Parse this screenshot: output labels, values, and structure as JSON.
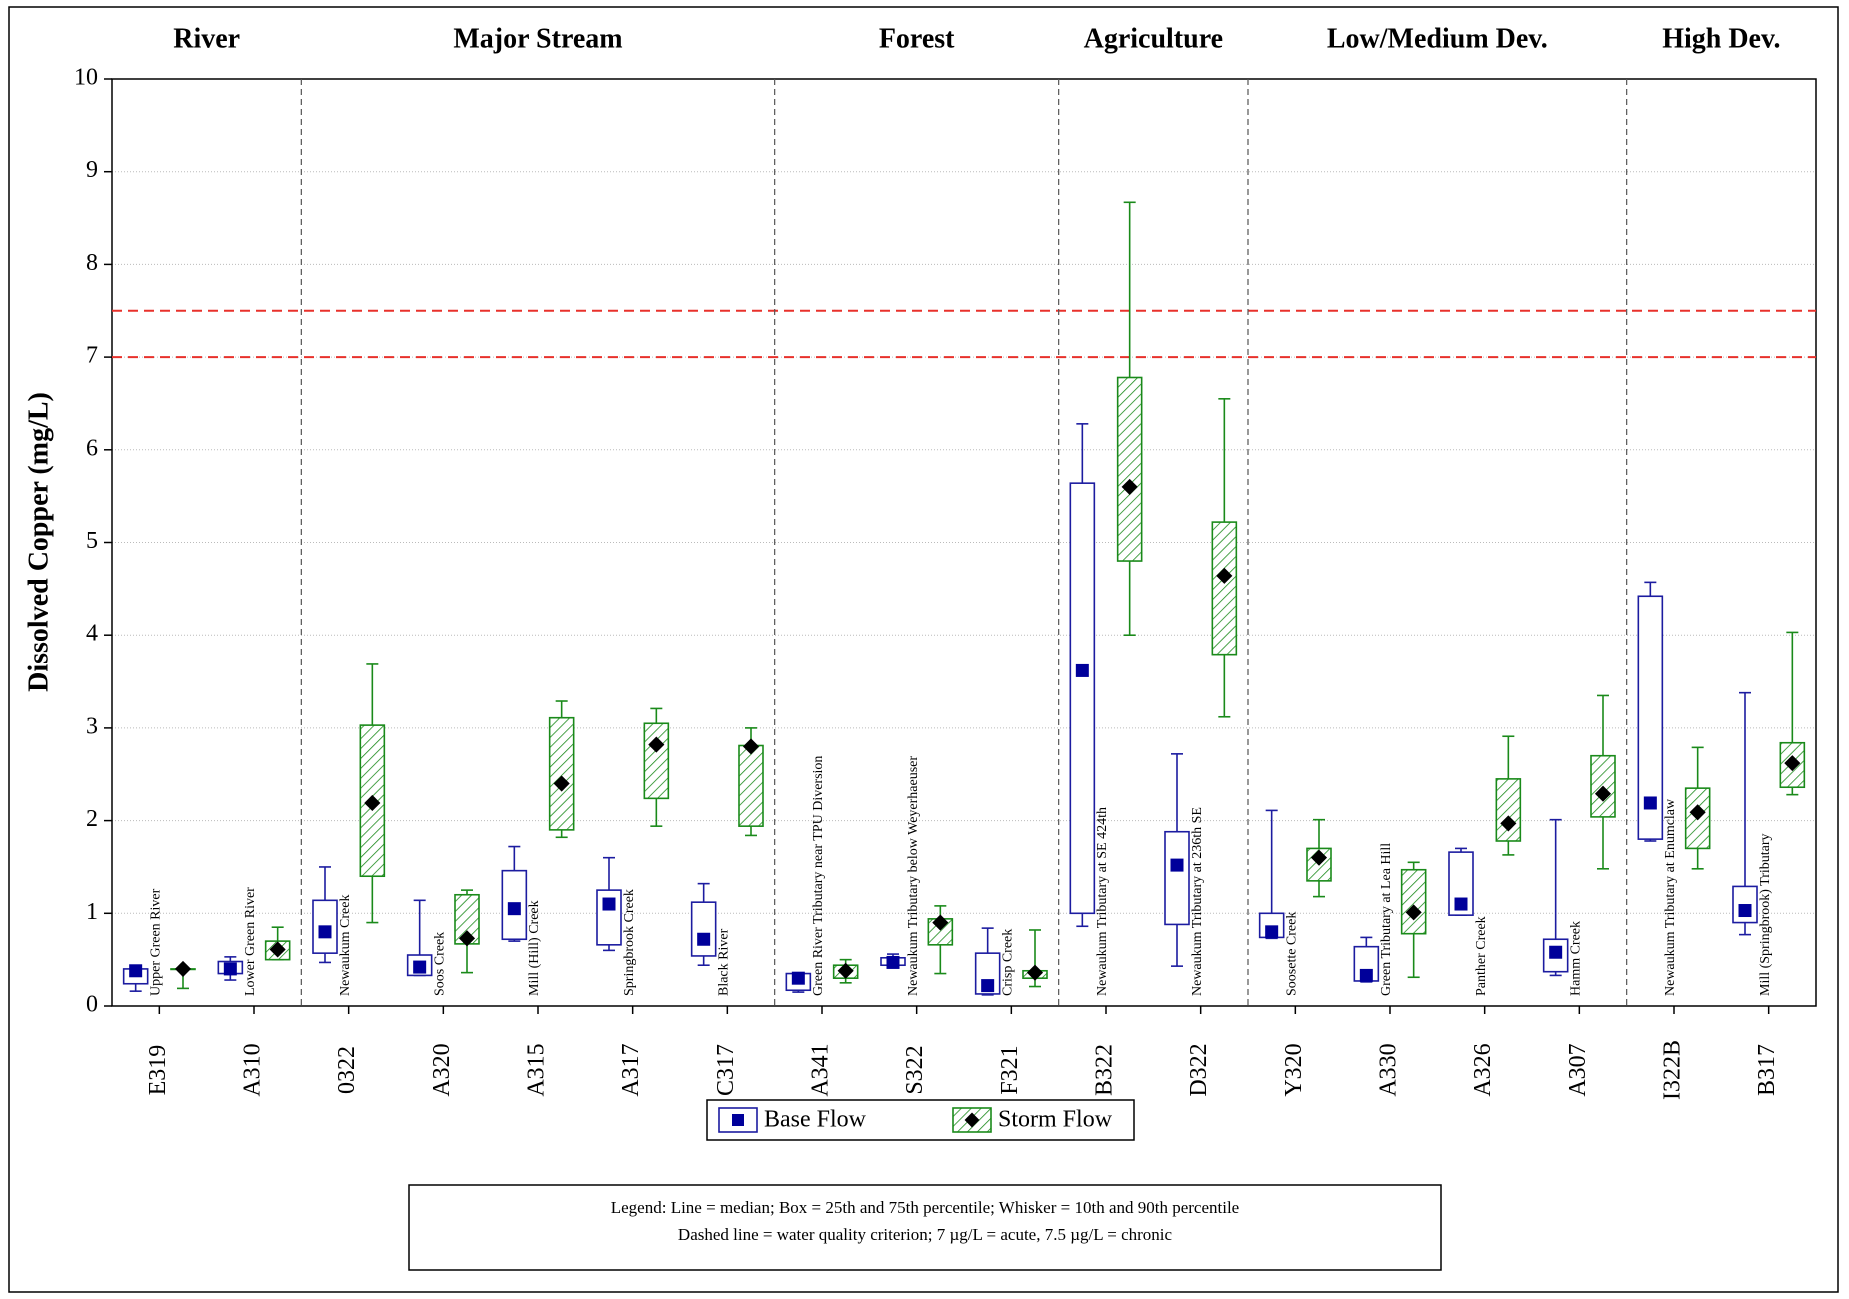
{
  "chart_data": {
    "type": "boxplot",
    "y_label": "Dissolved Copper (mg/L)",
    "ylim": [
      0,
      10
    ],
    "yticks": [
      0,
      1,
      2,
      3,
      4,
      5,
      6,
      7,
      8,
      9,
      10
    ],
    "grid": true,
    "categories": [
      "E319",
      "A310",
      "0322",
      "A320",
      "A315",
      "A317",
      "C317",
      "A341",
      "S322",
      "F321",
      "B322",
      "D322",
      "Y320",
      "A330",
      "A326",
      "A307",
      "I322B",
      "B317"
    ],
    "site_names": [
      "Upper Green River",
      "Lower Green River",
      "Newaukum Creek",
      "Soos Creek",
      "Mill (Hill) Creek",
      "Springbrook Creek",
      "Black River",
      "Green River Tributary near TPU Diversion",
      "Newaukum Tributary below  Weyerhaeuser",
      "Crisp Creek",
      "Newaukum Tributary at SE 424th",
      "Newaukum Tributary at 236th SE",
      "Soosette Creek",
      "Green Tributary at Lea Hill",
      "Panther Creek",
      "Hamm Creek",
      "Newaukum Tributary at Enumclaw",
      "Mill (Springbrook) Tributary"
    ],
    "groups": [
      {
        "name": "River",
        "size": 2
      },
      {
        "name": "Major Stream",
        "size": 5
      },
      {
        "name": "Forest",
        "size": 3
      },
      {
        "name": "Agriculture",
        "size": 2
      },
      {
        "name": "Low/Medium Dev.",
        "size": 4
      },
      {
        "name": "High Dev.",
        "size": 2
      }
    ],
    "reference_lines": [
      7,
      7.5
    ],
    "reference_color": "#e8312b",
    "series": [
      {
        "name": "Base Flow",
        "color": "#1c1ca0",
        "marker": "square",
        "marker_color": "#00009a",
        "pattern": "none",
        "whisker_low": [
          0.16,
          0.28,
          0.47,
          0.33,
          0.7,
          0.6,
          0.44,
          0.15,
          0.42,
          0.12,
          0.86,
          0.43,
          0.73,
          0.26,
          0.98,
          0.33,
          1.78,
          0.77
        ],
        "q1": [
          0.24,
          0.35,
          0.57,
          0.33,
          0.72,
          0.66,
          0.54,
          0.17,
          0.44,
          0.13,
          1.0,
          0.88,
          0.74,
          0.27,
          0.98,
          0.37,
          1.8,
          0.9
        ],
        "median": [
          0.38,
          0.4,
          0.8,
          0.42,
          1.05,
          1.1,
          0.72,
          0.3,
          0.47,
          0.22,
          3.62,
          1.52,
          0.8,
          0.33,
          1.1,
          0.58,
          2.19,
          1.03
        ],
        "q3": [
          0.4,
          0.48,
          1.14,
          0.55,
          1.46,
          1.25,
          1.12,
          0.35,
          0.52,
          0.57,
          5.64,
          1.88,
          1.0,
          0.64,
          1.66,
          0.72,
          4.42,
          1.29
        ],
        "whisker_high": [
          0.42,
          0.53,
          1.5,
          1.14,
          1.72,
          1.6,
          1.32,
          0.35,
          0.56,
          0.84,
          6.28,
          2.72,
          2.11,
          0.74,
          1.7,
          2.01,
          4.57,
          3.38
        ]
      },
      {
        "name": "Storm Flow",
        "color": "#1a8a1a",
        "marker": "diamond",
        "marker_color": "#000000",
        "pattern": "hatch",
        "whisker_low": [
          0.19,
          0.5,
          0.9,
          0.36,
          1.82,
          1.94,
          1.84,
          0.25,
          0.35,
          0.21,
          4.0,
          3.12,
          1.18,
          0.31,
          1.63,
          1.48,
          1.48,
          2.28
        ],
        "q1": [
          0.4,
          0.5,
          1.4,
          0.67,
          1.9,
          2.24,
          1.94,
          0.3,
          0.66,
          0.3,
          4.8,
          3.79,
          1.35,
          0.78,
          1.78,
          2.04,
          1.7,
          2.36
        ],
        "median": [
          0.4,
          0.61,
          2.19,
          0.73,
          2.4,
          2.82,
          2.8,
          0.38,
          0.9,
          0.36,
          5.6,
          4.64,
          1.6,
          1.01,
          1.97,
          2.29,
          2.09,
          2.62
        ],
        "q3": [
          0.4,
          0.7,
          3.03,
          1.2,
          3.11,
          3.05,
          2.81,
          0.44,
          0.94,
          0.38,
          6.78,
          5.22,
          1.7,
          1.47,
          2.45,
          2.7,
          2.35,
          2.84
        ],
        "whisker_high": [
          0.4,
          0.85,
          3.69,
          1.25,
          3.29,
          3.21,
          3.0,
          0.5,
          1.08,
          0.82,
          8.67,
          6.55,
          2.01,
          1.55,
          2.91,
          3.35,
          2.79,
          4.03
        ]
      }
    ],
    "notes": [
      "Legend: Line = median; Box = 25th and 75th percentile; Whisker = 10th and 90th percentile",
      "Dashed line = water quality criterion; 7 µg/L = acute, 7.5 µg/L = chronic"
    ]
  }
}
